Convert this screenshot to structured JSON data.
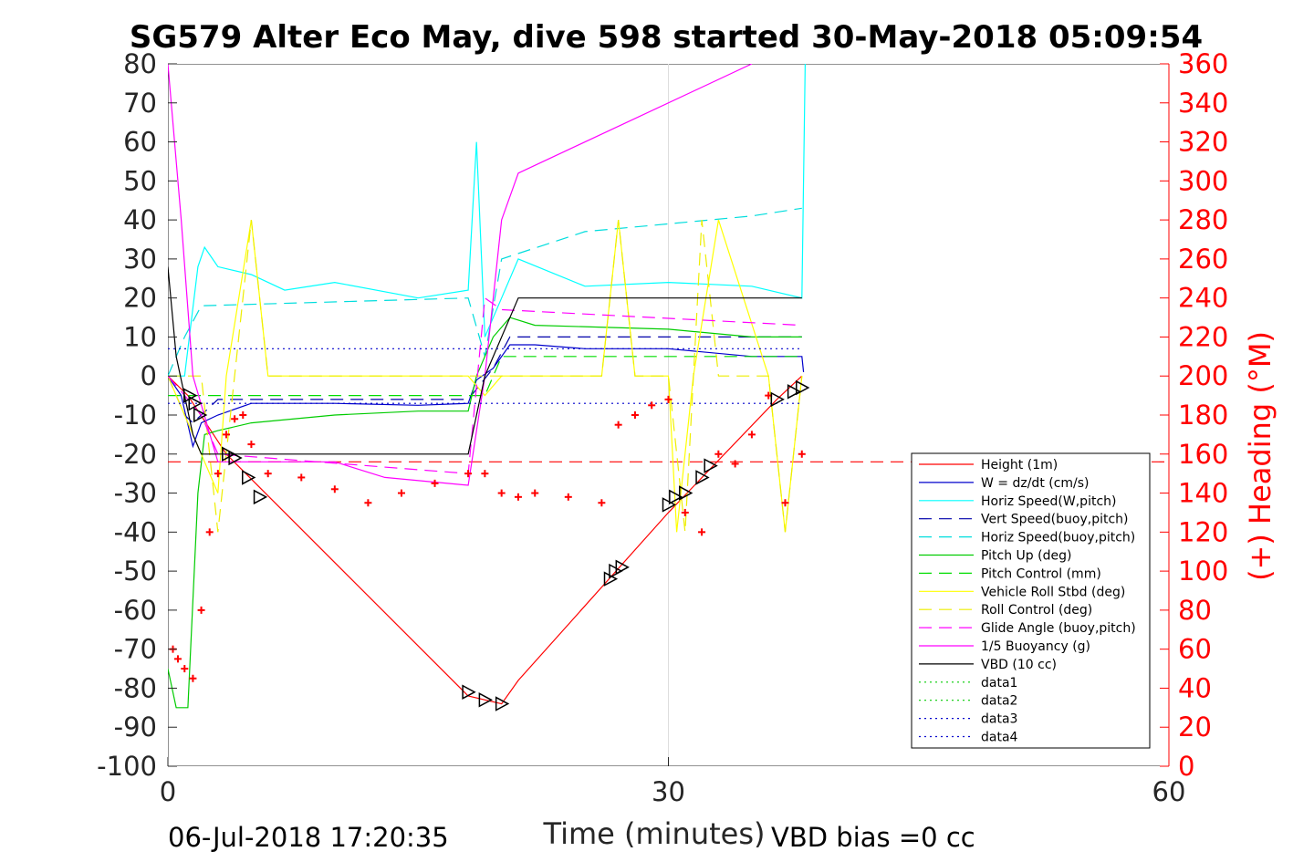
{
  "chart_data": {
    "type": "line",
    "title": "SG579 Alter Eco May, dive 598 started 30-May-2018 05:09:54",
    "xlabel": "Time (minutes)",
    "ylabel_right": "(+) Heading (°M)",
    "xlim": [
      0,
      60
    ],
    "ylim_left": [
      -100,
      80
    ],
    "ylim_right": [
      0,
      360
    ],
    "x_ticks": [
      "0",
      "30",
      "60"
    ],
    "y_left_ticks": [
      "80",
      "70",
      "60",
      "50",
      "40",
      "30",
      "20",
      "10",
      "0",
      "-10",
      "-20",
      "-30",
      "-40",
      "-50",
      "-60",
      "-70",
      "-80",
      "-90",
      "-100"
    ],
    "y_right_ticks": [
      "360",
      "340",
      "320",
      "300",
      "280",
      "260",
      "240",
      "220",
      "200",
      "180",
      "160",
      "140",
      "120",
      "100",
      "80",
      "60",
      "40",
      "20",
      "0"
    ],
    "grid": "x only at 30",
    "legend_position": "right",
    "footer_left": "06-Jul-2018 17:20:35",
    "footer_right": "VBD bias =0 cc",
    "series": [
      {
        "name": "Height (1m)",
        "color": "#ff0000",
        "style": "solid",
        "x": [
          0,
          1.2,
          3.5,
          18.0,
          20.0,
          21.0,
          30.0,
          36.5,
          38.0
        ],
        "y": [
          0,
          -5,
          -20,
          -82,
          -84,
          -78,
          -35,
          -6,
          0
        ]
      },
      {
        "name": "W = dz/dt (cm/s)",
        "color": "#0000cc",
        "style": "solid",
        "x": [
          0,
          0.8,
          1.5,
          2.0,
          3.0,
          5,
          10,
          15,
          18,
          18.5,
          19.5,
          20.5,
          22,
          25,
          30,
          35,
          38,
          38.1
        ],
        "y": [
          0,
          -5,
          -18,
          -12,
          -10,
          -7,
          -7,
          -7.5,
          -7,
          -1,
          2,
          8,
          8,
          7,
          7,
          5,
          5,
          1
        ]
      },
      {
        "name": "Horiz Speed(W,pitch)",
        "color": "#00ffff",
        "style": "solid",
        "x": [
          0,
          1,
          1.8,
          2.2,
          3,
          5,
          7,
          10,
          15,
          18,
          18.5,
          19,
          20,
          21,
          25,
          30,
          35,
          38,
          38.2
        ],
        "y": [
          0,
          0,
          28,
          33,
          28,
          26,
          22,
          24,
          20,
          22,
          60,
          10,
          20,
          30,
          23,
          24,
          23,
          20,
          80
        ]
      },
      {
        "name": "Vert Speed(buoy,pitch)",
        "color": "#0000aa",
        "style": "dash",
        "x": [
          0,
          1,
          1.5,
          3,
          18,
          19.5,
          20.5,
          38
        ],
        "y": [
          0,
          -10,
          -12,
          -6,
          -6,
          2,
          10,
          10
        ]
      },
      {
        "name": "Horiz Speed(buoy,pitch)",
        "color": "#00dddd",
        "style": "dash",
        "x": [
          0,
          1,
          2,
          18,
          19,
          20,
          25,
          30,
          35,
          38
        ],
        "y": [
          0,
          10,
          18,
          20,
          5,
          30,
          37,
          39,
          41,
          43
        ]
      },
      {
        "name": "Pitch Up (deg)",
        "color": "#00cc00",
        "style": "solid",
        "x": [
          0,
          0.5,
          1.2,
          1.8,
          2.2,
          3,
          5,
          10,
          15,
          18,
          18.5,
          19.5,
          20.5,
          22,
          30,
          35,
          38
        ],
        "y": [
          -75,
          -85,
          -85,
          -30,
          -15,
          -14,
          -12,
          -10,
          -9,
          -9,
          0,
          10,
          15,
          13,
          12,
          10,
          10
        ]
      },
      {
        "name": "Pitch Control (mm)",
        "color": "#00dd00",
        "style": "dash",
        "x": [
          0,
          2,
          2.2,
          18,
          19,
          20,
          38
        ],
        "y": [
          -5,
          -5,
          -5,
          -5,
          -5,
          5,
          5
        ]
      },
      {
        "name": "Vehicle Roll Stbd (deg)",
        "color": "#ffff00",
        "style": "solid",
        "x": [
          0,
          1,
          2,
          3,
          3.5,
          5,
          6,
          10,
          18,
          19,
          20,
          26,
          27,
          28,
          30,
          30.5,
          31.5,
          33,
          36,
          37,
          38
        ],
        "y": [
          0,
          -10,
          -20,
          -30,
          0,
          40,
          0,
          0,
          0,
          -5,
          0,
          0,
          40,
          0,
          0,
          -40,
          0,
          40,
          0,
          -40,
          0
        ]
      },
      {
        "name": "Roll Control (deg)",
        "color": "#eeee00",
        "style": "dash",
        "x": [
          0,
          2,
          3,
          5,
          6,
          18,
          19,
          26,
          27,
          28,
          30,
          31,
          32,
          33,
          36,
          37,
          38
        ],
        "y": [
          0,
          0,
          -40,
          40,
          0,
          0,
          0,
          0,
          40,
          0,
          0,
          -40,
          40,
          0,
          0,
          -40,
          0
        ]
      },
      {
        "name": "Glide Angle (buoy,pitch)",
        "color": "#ff00ff",
        "style": "dash",
        "x": [
          0,
          2,
          3,
          18,
          19,
          20,
          38
        ],
        "y": [
          0,
          -10,
          -20,
          -25,
          20,
          17,
          13
        ]
      },
      {
        "name": "1/5 Buoyancy (g)",
        "color": "#ff00ff",
        "style": "solid",
        "x": [
          0,
          0.8,
          1.5,
          3,
          10,
          13,
          18,
          19,
          20,
          21,
          35
        ],
        "y": [
          80,
          40,
          0,
          -22,
          -22,
          -26,
          -28,
          0,
          40,
          52,
          80
        ]
      },
      {
        "name": "VBD (10 cc)",
        "color": "#000000",
        "style": "solid",
        "x": [
          0,
          0.5,
          1.5,
          2,
          5,
          10,
          18,
          19,
          21,
          38
        ],
        "y": [
          28,
          5,
          -15,
          -20,
          -20,
          -20,
          -20,
          0,
          20,
          20
        ]
      },
      {
        "name": "data1",
        "color": "#00cc00",
        "style": "dot",
        "x": [],
        "y": []
      },
      {
        "name": "data2",
        "color": "#00cc00",
        "style": "dot",
        "x": [],
        "y": []
      },
      {
        "name": "data3",
        "color": "#0000cc",
        "style": "dot",
        "x": [
          0,
          38
        ],
        "y": [
          7,
          7
        ]
      },
      {
        "name": "data4",
        "color": "#0000cc",
        "style": "dot",
        "x": [
          0,
          38
        ],
        "y": [
          -7,
          -7
        ]
      }
    ],
    "heading_markers": {
      "color": "#ff0000",
      "symbol": "+",
      "x": [
        0.3,
        0.6,
        1.0,
        1.5,
        2.0,
        2.5,
        3.0,
        3.5,
        4.0,
        4.5,
        5.0,
        6,
        8,
        10,
        12,
        14,
        16,
        18,
        19,
        20,
        21,
        22,
        24,
        26,
        27,
        28,
        29,
        30,
        31,
        32,
        33,
        34,
        35,
        36,
        37,
        38
      ],
      "y": [
        60,
        55,
        50,
        45,
        80,
        120,
        150,
        170,
        178,
        180,
        165,
        150,
        148,
        142,
        135,
        140,
        145,
        150,
        150,
        140,
        138,
        140,
        138,
        135,
        175,
        180,
        185,
        188,
        130,
        120,
        160,
        155,
        170,
        190,
        135,
        160
      ]
    },
    "triangle_markers": {
      "color": "#000000",
      "x": [
        1.3,
        1.6,
        1.9,
        3.6,
        4.0,
        4.8,
        5.5,
        18.0,
        19.0,
        20.0,
        26.5,
        26.8,
        27.2,
        30.0,
        30.4,
        31.0,
        32.0,
        32.5,
        36.5,
        37.5,
        38.0
      ],
      "y": [
        -5,
        -7,
        -10,
        -20,
        -21,
        -26,
        -31,
        -81,
        -83,
        -84,
        -52,
        -50,
        -49,
        -33,
        -31,
        -30,
        -26,
        -23,
        -6,
        -4,
        -3
      ]
    },
    "reference_line": {
      "color": "#ff0000",
      "style": "dash",
      "y": -22
    }
  }
}
